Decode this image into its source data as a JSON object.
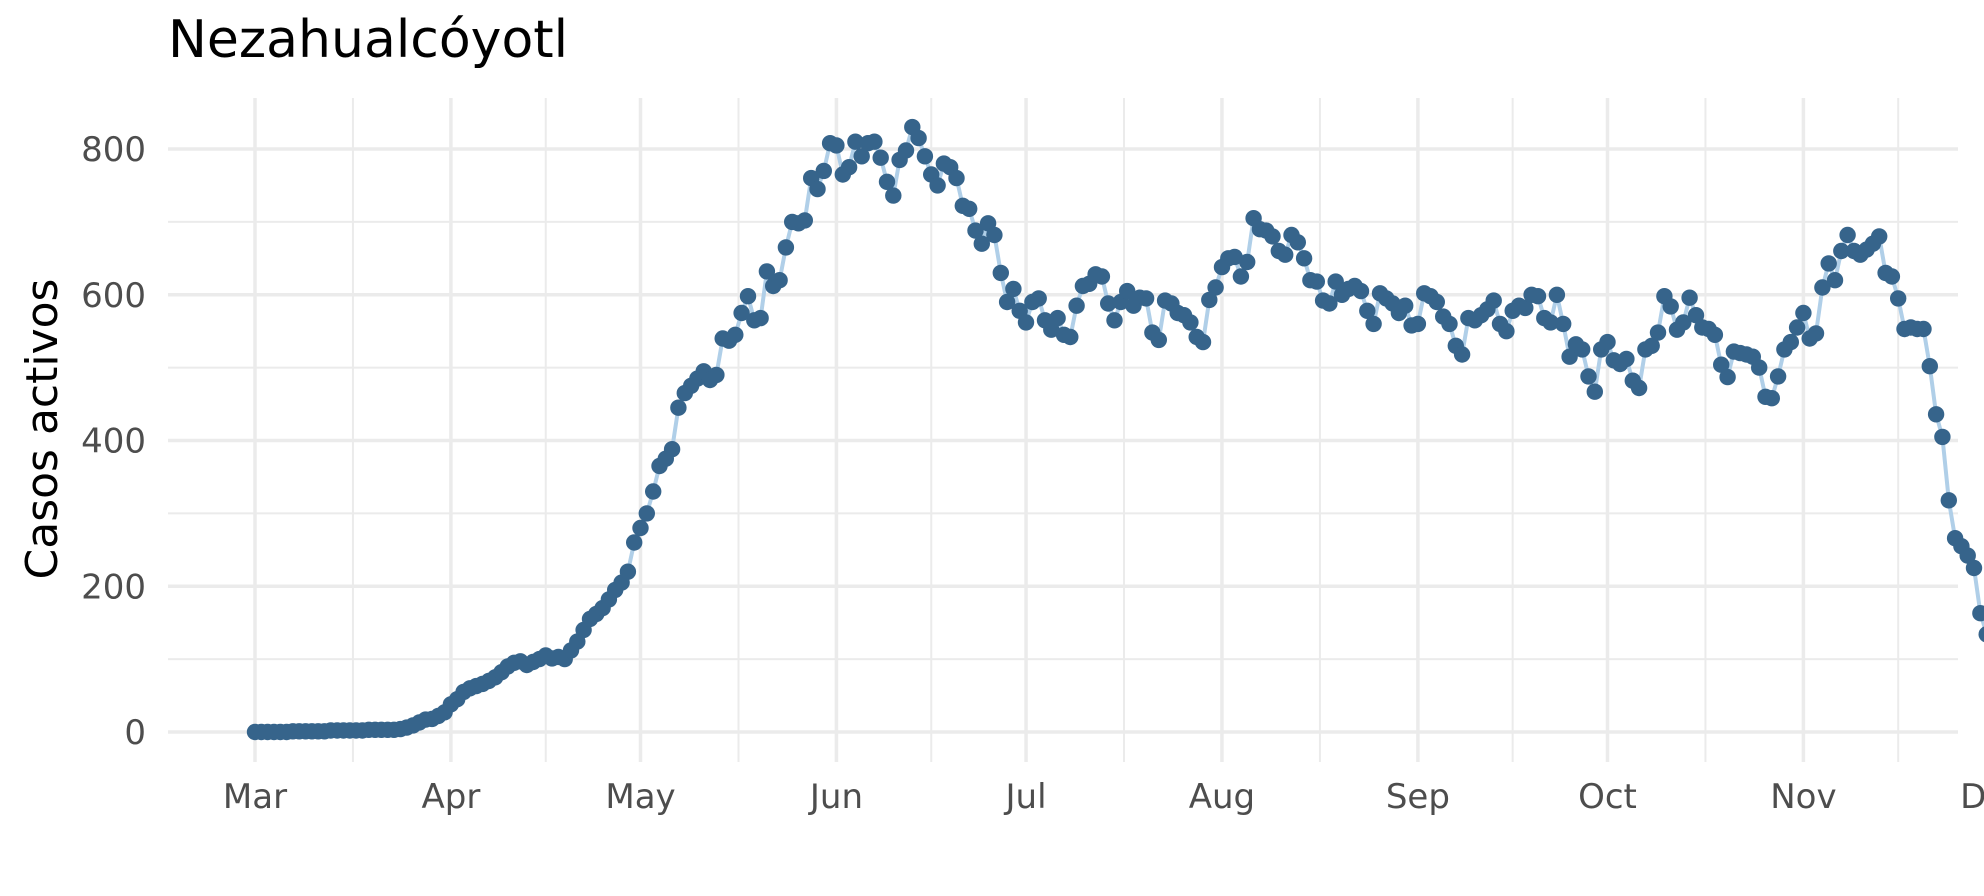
{
  "chart_data": {
    "type": "line",
    "title": "Nezahualcóyotl",
    "xlabel": "",
    "ylabel": "Casos activos",
    "x_ticks": [
      "Mar",
      "Apr",
      "May",
      "Jun",
      "Jul",
      "Aug",
      "Sep",
      "Oct",
      "Nov",
      "Dec"
    ],
    "y_ticks": [
      0,
      200,
      400,
      600,
      800
    ],
    "ylim": [
      -40,
      860
    ],
    "xlim": [
      "2020-02-22",
      "2020-12-01"
    ],
    "grid": true,
    "legend": "none",
    "colors": {
      "points": "#36648b",
      "line": "#b0cfe8",
      "grid": "#ebebeb"
    },
    "start_date": "2020-03-01",
    "values": [
      0,
      0,
      0,
      0,
      0,
      0,
      1,
      1,
      1,
      1,
      1,
      1,
      2,
      2,
      2,
      2,
      2,
      2,
      3,
      3,
      3,
      3,
      3,
      4,
      6,
      9,
      13,
      17,
      18,
      22,
      27,
      38,
      45,
      55,
      60,
      63,
      66,
      70,
      75,
      82,
      90,
      95,
      97,
      92,
      96,
      100,
      105,
      101,
      103,
      100,
      112,
      124,
      140,
      155,
      162,
      170,
      182,
      195,
      205,
      220,
      260,
      280,
      300,
      330,
      365,
      375,
      388,
      445,
      465,
      475,
      485,
      495,
      483,
      490,
      540,
      537,
      545,
      575,
      598,
      565,
      568,
      632,
      612,
      620,
      665,
      700,
      698,
      702,
      760,
      745,
      770,
      808,
      805,
      765,
      775,
      810,
      790,
      808,
      810,
      788,
      755,
      736,
      785,
      798,
      830,
      815,
      790,
      765,
      750,
      780,
      775,
      760,
      722,
      718,
      688,
      670,
      698,
      682,
      630,
      590,
      608,
      578,
      562,
      590,
      595,
      565,
      552,
      568,
      545,
      542,
      585,
      612,
      615,
      628,
      625,
      588,
      565,
      590,
      605,
      585,
      596,
      595,
      548,
      538,
      592,
      588,
      575,
      572,
      562,
      542,
      535,
      593,
      610,
      638,
      650,
      652,
      625,
      645,
      705,
      690,
      688,
      680,
      660,
      655,
      682,
      672,
      650,
      620,
      618,
      592,
      588,
      618,
      600,
      608,
      612,
      605,
      578,
      560,
      602,
      595,
      588,
      575,
      585,
      558,
      560,
      602,
      598,
      590,
      570,
      560,
      530,
      518,
      568,
      565,
      572,
      580,
      592,
      560,
      550,
      578,
      585,
      582,
      600,
      598,
      568,
      562,
      600,
      560,
      515,
      532,
      525,
      488,
      467,
      525,
      535,
      510,
      505,
      512,
      482,
      472,
      525,
      530,
      548,
      598,
      584,
      552,
      562,
      596,
      572,
      555,
      553,
      545,
      504,
      487,
      522,
      520,
      518,
      515,
      500,
      460,
      458,
      488,
      525,
      535,
      555,
      575,
      540,
      547,
      610,
      643,
      620,
      660,
      682,
      660,
      655,
      662,
      670,
      680,
      630,
      625,
      595,
      553,
      555,
      553,
      553,
      502,
      436,
      405,
      318,
      266,
      255,
      242,
      225,
      163,
      134
    ]
  }
}
